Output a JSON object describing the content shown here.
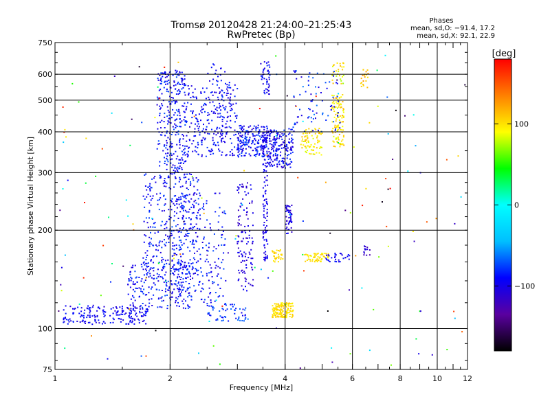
{
  "chart_data": {
    "type": "scatter",
    "title": "Tromsø 20120428 21:24:00–21:25:43",
    "subtitle": "RwPretec (Bp)",
    "xlabel": "Frequency [MHz]",
    "ylabel": "Stationary phase Virtual Height [km]",
    "x_scale": "log",
    "y_scale": "log",
    "xlim": [
      1,
      12
    ],
    "ylim": [
      75,
      750
    ],
    "x_ticks": [
      1,
      2,
      4,
      6,
      8,
      10,
      12
    ],
    "y_ticks": [
      75,
      100,
      200,
      300,
      400,
      500,
      600,
      750
    ],
    "grid": true,
    "phases_box": {
      "title": "Phases",
      "line_o": "mean, sd,O: −91.4, 17.2",
      "line_x": "mean, sd,X:  92.1, 22.9"
    },
    "colorbar": {
      "label": "[deg]",
      "min": -180,
      "max": 180,
      "ticks": [
        -100,
        0,
        100
      ],
      "colors": [
        "#000000",
        "#5a00a0",
        "#0000ff",
        "#00bfff",
        "#00ffff",
        "#00ff00",
        "#ffff00",
        "#ff8000",
        "#ff0000"
      ]
    },
    "clusters": [
      {
        "f": [
          1.05,
          1.75
        ],
        "h": [
          103,
          118
        ],
        "phase": [
          -110,
          -80
        ],
        "n": 190
      },
      {
        "f": [
          1.55,
          2.3
        ],
        "h": [
          115,
          160
        ],
        "phase": [
          -110,
          -70
        ],
        "n": 230
      },
      {
        "f": [
          1.7,
          2.4
        ],
        "h": [
          150,
          300
        ],
        "phase": [
          -110,
          -70
        ],
        "n": 320
      },
      {
        "f": [
          1.85,
          2.2
        ],
        "h": [
          300,
          620
        ],
        "phase": [
          -110,
          -70
        ],
        "n": 280
      },
      {
        "f": [
          2.0,
          2.8
        ],
        "h": [
          120,
          260
        ],
        "phase": [
          -110,
          -70
        ],
        "n": 220
      },
      {
        "f": [
          2.2,
          3.0
        ],
        "h": [
          335,
          560
        ],
        "phase": [
          -110,
          -75
        ],
        "n": 230
      },
      {
        "f": [
          2.5,
          2.9
        ],
        "h": [
          380,
          650
        ],
        "phase": [
          -110,
          -80
        ],
        "n": 60
      },
      {
        "f": [
          2.5,
          3.2
        ],
        "h": [
          105,
          120
        ],
        "phase": [
          -100,
          -60
        ],
        "n": 60
      },
      {
        "f": [
          3.0,
          3.6
        ],
        "h": [
          335,
          420
        ],
        "phase": [
          -115,
          -70
        ],
        "n": 200
      },
      {
        "f": [
          3.0,
          3.3
        ],
        "h": [
          130,
          280
        ],
        "phase": [
          -120,
          -90
        ],
        "n": 120
      },
      {
        "f": [
          3.5,
          3.6
        ],
        "h": [
          160,
          400
        ],
        "phase": [
          -110,
          -90
        ],
        "n": 110
      },
      {
        "f": [
          3.45,
          3.65
        ],
        "h": [
          520,
          660
        ],
        "phase": [
          -110,
          -80
        ],
        "n": 45
      },
      {
        "f": [
          3.6,
          4.2
        ],
        "h": [
          310,
          410
        ],
        "phase": [
          -115,
          -75
        ],
        "n": 180
      },
      {
        "f": [
          3.7,
          4.2
        ],
        "h": [
          108,
          120
        ],
        "phase": [
          90,
          115
        ],
        "n": 150
      },
      {
        "f": [
          3.7,
          3.95
        ],
        "h": [
          160,
          175
        ],
        "phase": [
          95,
          110
        ],
        "n": 30
      },
      {
        "f": [
          4.0,
          4.2
        ],
        "h": [
          195,
          240
        ],
        "phase": [
          -120,
          -90
        ],
        "n": 50
      },
      {
        "f": [
          4.5,
          5.2
        ],
        "h": [
          160,
          170
        ],
        "phase": [
          85,
          110
        ],
        "n": 55
      },
      {
        "f": [
          4.4,
          5.0
        ],
        "h": [
          340,
          410
        ],
        "phase": [
          80,
          115
        ],
        "n": 80
      },
      {
        "f": [
          5.3,
          5.7
        ],
        "h": [
          360,
          520
        ],
        "phase": [
          80,
          120
        ],
        "n": 110
      },
      {
        "f": [
          5.3,
          5.7
        ],
        "h": [
          560,
          650
        ],
        "phase": [
          70,
          120
        ],
        "n": 30
      },
      {
        "f": [
          4.2,
          5.6
        ],
        "h": [
          400,
          620
        ],
        "phase": [
          -110,
          -60
        ],
        "n": 80
      },
      {
        "f": [
          5.1,
          5.9
        ],
        "h": [
          160,
          170
        ],
        "phase": [
          -110,
          -80
        ],
        "n": 30
      },
      {
        "f": [
          6.3,
          6.6
        ],
        "h": [
          540,
          620
        ],
        "phase": [
          100,
          130
        ],
        "n": 20
      },
      {
        "f": [
          6.4,
          6.7
        ],
        "h": [
          165,
          180
        ],
        "phase": [
          -130,
          -100
        ],
        "n": 15
      },
      {
        "f": [
          1.0,
          12.0
        ],
        "h": [
          75,
          700
        ],
        "phase": [
          -180,
          180
        ],
        "n": 160
      }
    ]
  }
}
